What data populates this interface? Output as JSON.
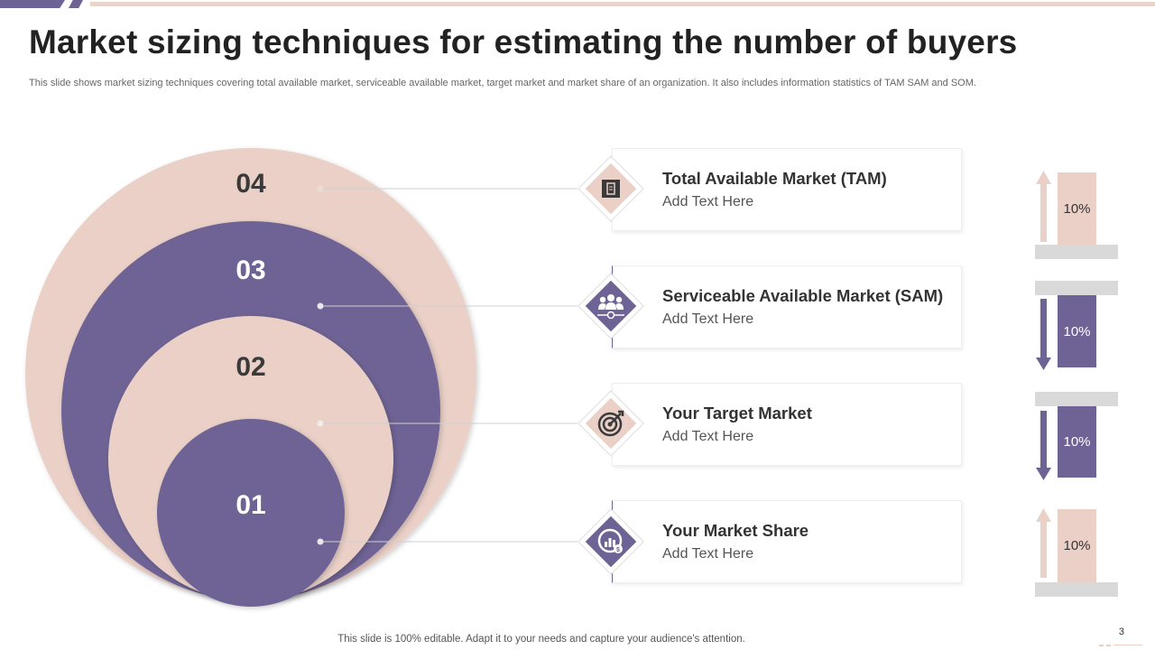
{
  "title": "Market sizing techniques for estimating the number of buyers",
  "subtitle": "This slide shows market sizing techniques covering total available market, serviceable available market, target market and market share of an organization. It also includes information statistics of TAM  SAM  and SOM.",
  "circles": [
    {
      "number": "04",
      "color": "#ead0c7"
    },
    {
      "number": "03",
      "color": "#6e6394"
    },
    {
      "number": "02",
      "color": "#ead0c7"
    },
    {
      "number": "01",
      "color": "#6e6394"
    }
  ],
  "cards": [
    {
      "title": "Total Available Market (TAM)",
      "text": "Add Text Here",
      "icon": "document-icon"
    },
    {
      "title": "Serviceable Available Market (SAM)",
      "text": "Add Text Here",
      "icon": "team-icon"
    },
    {
      "title": "Your Target Market",
      "text": "Add Text Here",
      "icon": "target-icon"
    },
    {
      "title": "Your Market Share",
      "text": "Add Text Here",
      "icon": "chart-dollar-icon"
    }
  ],
  "stats": [
    {
      "value": "10%",
      "direction": "up",
      "color": "#ead0c7"
    },
    {
      "value": "10%",
      "direction": "down",
      "color": "#6e6394"
    },
    {
      "value": "10%",
      "direction": "down",
      "color": "#6e6394"
    },
    {
      "value": "10%",
      "direction": "up",
      "color": "#ead0c7"
    }
  ],
  "footer": "This slide is 100% editable. Adapt it to your needs and capture your audience's attention.",
  "page_number": "3",
  "colors": {
    "purple": "#6e6394",
    "pink": "#ead0c7",
    "gray": "#d9d9d9"
  }
}
